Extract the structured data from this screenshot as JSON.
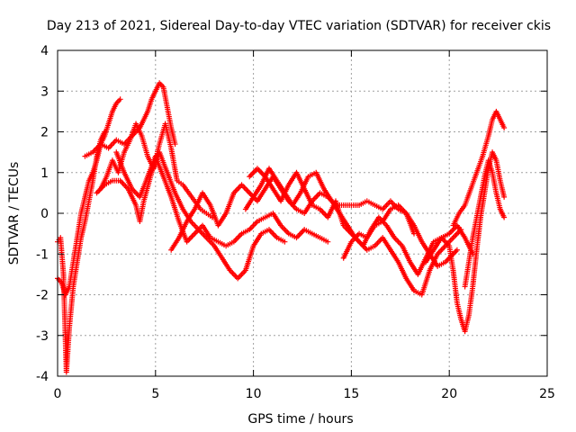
{
  "chart_data": {
    "type": "scatter",
    "title": "Day 213 of 2021, Sidereal Day-to-day VTEC variation (SDTVAR) for receiver ckis",
    "xlabel": "GPS time / hours",
    "ylabel": "SDTVAR / TECUs",
    "xlim": [
      0,
      25
    ],
    "ylim": [
      -4,
      4
    ],
    "xticks": [
      0,
      5,
      10,
      15,
      20,
      25
    ],
    "yticks": [
      -4,
      -3,
      -2,
      -1,
      0,
      1,
      2,
      3,
      4
    ],
    "xtick_labels": [
      "0",
      "5",
      "10",
      "15",
      "20",
      "25"
    ],
    "ytick_labels": [
      "-4",
      "-3",
      "-2",
      "-1",
      "0",
      "1",
      "2",
      "3",
      "4"
    ],
    "grid": true,
    "marker": "+",
    "color": "#ff0000",
    "series": [
      {
        "name": "track-1",
        "x": [
          0.0,
          0.2,
          0.4,
          0.6,
          0.8,
          1.0,
          1.2,
          1.4,
          1.6,
          1.8,
          2.0,
          2.2,
          2.4,
          2.6,
          2.8,
          3.0,
          3.2
        ],
        "y": [
          -1.6,
          -1.7,
          -2.0,
          -1.8,
          -1.2,
          -0.6,
          0.0,
          0.4,
          0.8,
          1.0,
          1.3,
          1.7,
          1.9,
          2.2,
          2.5,
          2.7,
          2.8
        ]
      },
      {
        "name": "track-2",
        "x": [
          0.0,
          0.15,
          0.3,
          0.45,
          0.6,
          0.8,
          1.0,
          1.2,
          1.4,
          1.6,
          1.8,
          2.0,
          2.2,
          2.4
        ],
        "y": [
          -0.7,
          -0.6,
          -1.5,
          -3.9,
          -2.8,
          -1.8,
          -1.2,
          -0.6,
          -0.2,
          0.3,
          0.8,
          1.4,
          1.8,
          2.0
        ]
      },
      {
        "name": "track-3",
        "x": [
          1.4,
          1.8,
          2.2,
          2.6,
          3.0,
          3.4,
          3.8,
          4.0,
          4.2,
          4.4,
          4.6,
          4.8,
          5.0,
          5.2,
          5.4,
          5.6,
          5.8,
          6.0
        ],
        "y": [
          1.4,
          1.5,
          1.7,
          1.6,
          1.8,
          1.7,
          1.9,
          2.0,
          2.1,
          2.3,
          2.5,
          2.8,
          3.0,
          3.2,
          3.1,
          2.6,
          2.1,
          1.7
        ]
      },
      {
        "name": "track-4",
        "x": [
          2.2,
          2.5,
          2.8,
          3.1,
          3.4,
          3.7,
          4.0,
          4.3,
          4.6,
          4.9,
          5.2,
          5.5,
          5.8,
          6.1,
          6.4,
          6.7,
          7.0,
          7.3,
          7.6,
          7.9
        ],
        "y": [
          0.6,
          0.9,
          1.3,
          1.0,
          1.5,
          1.8,
          2.2,
          1.9,
          1.4,
          1.1,
          1.7,
          2.2,
          1.6,
          0.8,
          0.7,
          0.5,
          0.3,
          0.1,
          0.0,
          -0.1
        ]
      },
      {
        "name": "track-5",
        "x": [
          2.0,
          2.4,
          2.8,
          3.2,
          3.6,
          4.0,
          4.2,
          4.4,
          4.8,
          5.2,
          5.6,
          6.0,
          6.4,
          6.8,
          7.2,
          7.6,
          8.0,
          8.4,
          8.8,
          9.2,
          9.6,
          10.0,
          10.4,
          10.8,
          11.2,
          11.6
        ],
        "y": [
          0.5,
          0.7,
          0.8,
          0.8,
          0.6,
          0.2,
          -0.2,
          0.3,
          1.0,
          1.5,
          1.0,
          0.5,
          0.1,
          -0.2,
          -0.4,
          -0.6,
          -0.8,
          -1.1,
          -1.4,
          -1.6,
          -1.4,
          -0.8,
          -0.5,
          -0.4,
          -0.6,
          -0.7
        ]
      },
      {
        "name": "track-6",
        "x": [
          3.0,
          3.4,
          3.8,
          4.2,
          4.6,
          5.0,
          5.4,
          5.8,
          6.2,
          6.6,
          7.0,
          7.4,
          7.8,
          8.2,
          8.6,
          9.0,
          9.4,
          9.8,
          10.2,
          10.6,
          11.0,
          11.4,
          11.8,
          12.2,
          12.6,
          13.0,
          13.4,
          13.8
        ],
        "y": [
          1.5,
          1.0,
          0.6,
          0.4,
          0.9,
          1.4,
          0.9,
          0.4,
          -0.2,
          -0.7,
          -0.5,
          -0.3,
          -0.6,
          -0.7,
          -0.8,
          -0.7,
          -0.5,
          -0.4,
          -0.2,
          -0.1,
          0.0,
          -0.3,
          -0.5,
          -0.6,
          -0.4,
          -0.5,
          -0.6,
          -0.7
        ]
      },
      {
        "name": "track-7",
        "x": [
          5.8,
          6.2,
          6.6,
          7.0,
          7.4,
          7.8,
          8.2,
          8.6,
          9.0,
          9.4,
          9.8,
          10.2,
          10.6,
          11.0,
          11.4,
          11.8,
          12.2,
          12.6,
          13.0,
          13.4,
          13.8,
          14.2,
          14.6,
          15.0,
          15.4,
          15.8,
          16.2,
          16.6,
          17.0,
          17.4,
          17.8,
          18.2
        ],
        "y": [
          -0.9,
          -0.6,
          -0.2,
          0.1,
          0.5,
          0.2,
          -0.3,
          0.0,
          0.5,
          0.7,
          0.5,
          0.3,
          0.6,
          0.9,
          0.6,
          0.3,
          0.1,
          0.0,
          0.3,
          0.5,
          0.4,
          0.2,
          0.2,
          0.2,
          0.2,
          0.3,
          0.2,
          0.1,
          0.3,
          0.1,
          0.0,
          -0.5
        ]
      },
      {
        "name": "track-8",
        "x": [
          9.8,
          10.2,
          10.6,
          11.0,
          11.4,
          11.8,
          12.2,
          12.6,
          13.0,
          13.4,
          13.8,
          14.2,
          14.6,
          15.0,
          15.4,
          15.8,
          16.2,
          16.6,
          17.0,
          17.4,
          17.8,
          18.2,
          18.6,
          19.0,
          19.4,
          19.8,
          20.2,
          20.6
        ],
        "y": [
          0.9,
          1.1,
          0.9,
          0.6,
          0.3,
          0.7,
          1.0,
          0.6,
          0.2,
          0.1,
          -0.1,
          0.3,
          -0.3,
          -0.5,
          -0.7,
          -0.9,
          -0.8,
          -0.6,
          -0.9,
          -1.2,
          -1.6,
          -1.9,
          -2.0,
          -1.4,
          -1.0,
          -0.8,
          -0.6,
          -0.4
        ]
      },
      {
        "name": "track-9",
        "x": [
          9.6,
          10.0,
          10.4,
          10.8,
          11.2,
          11.6,
          12.0,
          12.4,
          12.8,
          13.2,
          13.6,
          14.0,
          14.4,
          14.8,
          15.2,
          15.6,
          16.0,
          16.4,
          16.8,
          17.2,
          17.6,
          18.0,
          18.4,
          18.8,
          19.2,
          19.6,
          20.0,
          20.4,
          20.8,
          21.2
        ],
        "y": [
          0.1,
          0.4,
          0.7,
          1.1,
          0.8,
          0.5,
          0.2,
          0.5,
          0.9,
          1.0,
          0.6,
          0.3,
          0.0,
          -0.3,
          -0.6,
          -0.8,
          -0.4,
          -0.1,
          -0.3,
          -0.6,
          -0.8,
          -1.2,
          -1.5,
          -1.1,
          -0.7,
          -0.6,
          -0.5,
          -0.3,
          -0.6,
          -1.0
        ]
      },
      {
        "name": "track-10",
        "x": [
          14.6,
          15.0,
          15.4,
          15.8,
          16.2,
          16.6,
          17.0,
          17.4,
          17.8,
          18.2,
          18.6,
          19.0,
          19.4,
          19.8,
          20.2,
          20.4
        ],
        "y": [
          -1.1,
          -0.7,
          -0.5,
          -0.6,
          -0.3,
          -0.2,
          0.1,
          0.2,
          0.0,
          -0.3,
          -0.7,
          -1.0,
          -1.3,
          -1.2,
          -1.0,
          -0.9
        ]
      },
      {
        "name": "track-11",
        "x": [
          18.8,
          19.2,
          19.6,
          20.0,
          20.2,
          20.4,
          20.6,
          20.8,
          21.0,
          21.2,
          21.4,
          21.6,
          21.8,
          22.0,
          22.2,
          22.4,
          22.6,
          22.8
        ],
        "y": [
          -1.2,
          -0.9,
          -0.6,
          -0.8,
          -1.4,
          -2.2,
          -2.6,
          -2.9,
          -2.5,
          -1.8,
          -0.9,
          -0.1,
          0.5,
          1.1,
          1.5,
          1.3,
          0.8,
          0.4
        ]
      },
      {
        "name": "track-12",
        "x": [
          20.2,
          20.5,
          20.8,
          21.1,
          21.4,
          21.7,
          22.0,
          22.2,
          22.4,
          22.6,
          22.8
        ],
        "y": [
          -0.3,
          0.0,
          0.2,
          0.6,
          1.0,
          1.4,
          1.9,
          2.3,
          2.5,
          2.3,
          2.1
        ]
      },
      {
        "name": "track-13",
        "x": [
          20.8,
          21.0,
          21.2,
          21.4,
          21.6,
          21.8,
          22.0,
          22.2,
          22.4,
          22.6,
          22.8
        ],
        "y": [
          -1.8,
          -1.2,
          -0.6,
          -0.1,
          0.4,
          0.9,
          1.3,
          1.0,
          0.5,
          0.1,
          -0.1
        ]
      }
    ]
  }
}
